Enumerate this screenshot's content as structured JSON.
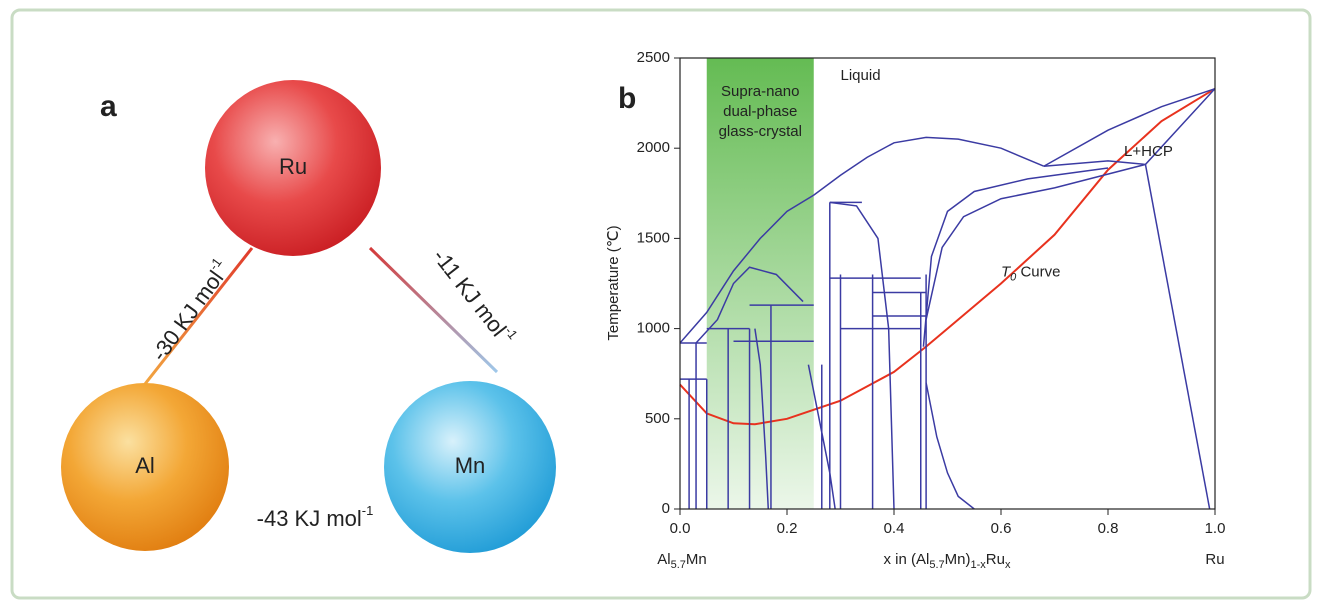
{
  "panel_a": {
    "label": "a",
    "elements": [
      {
        "name": "Ru"
      },
      {
        "name": "Al"
      },
      {
        "name": "Mn"
      }
    ],
    "bonds": [
      {
        "label_parts": [
          "-30 KJ mol",
          "-1"
        ]
      },
      {
        "label_parts": [
          "-11 KJ mol",
          "-1"
        ]
      },
      {
        "label_parts": [
          "-43 KJ mol",
          "-1"
        ]
      }
    ]
  },
  "chart_data": {
    "type": "line",
    "panel_label": "b",
    "ylabel": "Temperature (℃)",
    "xlabel_parts": [
      "x in (Al",
      "5.7",
      "Mn)",
      "1-x",
      "Ru",
      "x"
    ],
    "x_left_label_parts": [
      "Al",
      "5.7",
      "Mn"
    ],
    "x_right_label": "Ru",
    "xlim": [
      0,
      1
    ],
    "ylim": [
      0,
      2500
    ],
    "xticks": [
      {
        "value": 0,
        "label": "0.0"
      },
      0.2,
      0.4,
      0.6,
      0.8,
      {
        "value": 1,
        "label": "1.0"
      }
    ],
    "yticks": [
      0,
      500,
      1000,
      1500,
      2000,
      2500
    ],
    "shade": {
      "x": [
        0.05,
        0.25
      ],
      "color": "#5cb84a",
      "label_lines": [
        "Supra-nano",
        "dual-phase",
        "glass-crystal"
      ]
    },
    "annotations": [
      {
        "text": "Liquid",
        "x": 0.3,
        "y": 2400
      },
      {
        "text": "L+HCP",
        "x": 0.83,
        "y": 1980
      }
    ],
    "t0_label": {
      "parts": [
        "T",
        "0",
        " Curve"
      ],
      "x": 0.6,
      "y": 1310
    },
    "series": [
      {
        "color": "#e8321e",
        "x": [
          0,
          0.05,
          0.1,
          0.14,
          0.2,
          0.3,
          0.4,
          0.46,
          0.5,
          0.6,
          0.7,
          0.8,
          0.9,
          1.0
        ],
        "values": [
          690,
          530,
          475,
          470,
          500,
          600,
          760,
          900,
          1000,
          1250,
          1520,
          1880,
          2150,
          2330
        ]
      },
      {
        "color": "#3b3ba3",
        "x": [
          0,
          0.05,
          0.1,
          0.15,
          0.2,
          0.25
        ],
        "values": [
          920,
          1090,
          1320,
          1500,
          1650,
          1740
        ]
      },
      {
        "color": "#3b3ba3",
        "x": [
          0.25,
          0.3,
          0.35,
          0.4,
          0.46,
          0.52,
          0.6,
          0.68
        ],
        "values": [
          1740,
          1850,
          1950,
          2030,
          2060,
          2050,
          2000,
          1900
        ]
      },
      {
        "color": "#3b3ba3",
        "x": [
          0.68,
          0.8,
          0.9,
          1.0
        ],
        "values": [
          1900,
          2100,
          2230,
          2330
        ]
      },
      {
        "color": "#3b3ba3",
        "x": [
          0.68,
          0.8,
          0.87,
          1.0
        ],
        "values": [
          1900,
          1930,
          1910,
          2330
        ]
      },
      {
        "color": "#3b3ba3",
        "x": [
          0.87,
          0.99
        ],
        "values": [
          1910,
          0
        ]
      },
      {
        "color": "#3b3ba3",
        "x": [
          0.455,
          0.47,
          0.5,
          0.55,
          0.65,
          0.8
        ],
        "values": [
          900,
          1400,
          1650,
          1760,
          1830,
          1890
        ]
      },
      {
        "color": "#3b3ba3",
        "x": [
          0.46,
          0.49,
          0.53,
          0.6,
          0.7,
          0.87
        ],
        "values": [
          1050,
          1450,
          1620,
          1720,
          1780,
          1910
        ]
      },
      {
        "color": "#3b3ba3",
        "x": [
          0.46,
          0.48,
          0.5,
          0.52,
          0.55
        ],
        "values": [
          700,
          400,
          200,
          70,
          0
        ]
      },
      {
        "color": "#3b3ba3",
        "x": [
          0.03,
          0.07,
          0.1,
          0.13,
          0.18,
          0.23
        ],
        "values": [
          920,
          1050,
          1250,
          1340,
          1300,
          1150
        ]
      },
      {
        "color": "#3b3ba3",
        "x": [
          0.28,
          0.33,
          0.37,
          0.39,
          0.4
        ],
        "values": [
          1700,
          1680,
          1500,
          1000,
          0
        ]
      },
      {
        "color": "#3b3ba3",
        "x": [
          0.14,
          0.15,
          0.16,
          0.165
        ],
        "values": [
          1000,
          800,
          300,
          0
        ]
      },
      {
        "color": "#3b3ba3",
        "x": [
          0.24,
          0.26,
          0.28,
          0.29
        ],
        "values": [
          800,
          500,
          200,
          0
        ]
      },
      {
        "color": "#3b3ba3",
        "x": [
          0.017,
          0.017
        ],
        "values": [
          720,
          0
        ]
      },
      {
        "color": "#3b3ba3",
        "x": [
          0.03,
          0.03
        ],
        "values": [
          920,
          0
        ]
      },
      {
        "color": "#3b3ba3",
        "x": [
          0.05,
          0.05
        ],
        "values": [
          720,
          0
        ]
      },
      {
        "color": "#3b3ba3",
        "x": [
          0.09,
          0.09
        ],
        "values": [
          1000,
          0
        ]
      },
      {
        "color": "#3b3ba3",
        "x": [
          0.13,
          0.13
        ],
        "values": [
          1000,
          0
        ]
      },
      {
        "color": "#3b3ba3",
        "x": [
          0.17,
          0.17
        ],
        "values": [
          1130,
          0
        ]
      },
      {
        "color": "#3b3ba3",
        "x": [
          0.265,
          0.265
        ],
        "values": [
          800,
          0
        ]
      },
      {
        "color": "#3b3ba3",
        "x": [
          0.28,
          0.28
        ],
        "values": [
          1700,
          0
        ]
      },
      {
        "color": "#3b3ba3",
        "x": [
          0.3,
          0.3
        ],
        "values": [
          1300,
          0
        ]
      },
      {
        "color": "#3b3ba3",
        "x": [
          0.36,
          0.36
        ],
        "values": [
          1300,
          0
        ]
      },
      {
        "color": "#3b3ba3",
        "x": [
          0.45,
          0.45
        ],
        "values": [
          1200,
          0
        ]
      },
      {
        "color": "#3b3ba3",
        "x": [
          0.46,
          0.46
        ],
        "values": [
          1300,
          0
        ]
      },
      {
        "color": "#3b3ba3",
        "x": [
          0,
          0.05
        ],
        "values": [
          720,
          720
        ]
      },
      {
        "color": "#3b3ba3",
        "x": [
          0,
          0.05
        ],
        "values": [
          920,
          920
        ]
      },
      {
        "color": "#3b3ba3",
        "x": [
          0.05,
          0.13
        ],
        "values": [
          1000,
          1000
        ]
      },
      {
        "color": "#3b3ba3",
        "x": [
          0.13,
          0.25
        ],
        "values": [
          1130,
          1130
        ]
      },
      {
        "color": "#3b3ba3",
        "x": [
          0.1,
          0.25
        ],
        "values": [
          930,
          930
        ]
      },
      {
        "color": "#3b3ba3",
        "x": [
          0.28,
          0.45
        ],
        "values": [
          1280,
          1280
        ]
      },
      {
        "color": "#3b3ba3",
        "x": [
          0.28,
          0.34
        ],
        "values": [
          1700,
          1700
        ]
      },
      {
        "color": "#3b3ba3",
        "x": [
          0.36,
          0.46
        ],
        "values": [
          1200,
          1200
        ]
      },
      {
        "color": "#3b3ba3",
        "x": [
          0.36,
          0.46
        ],
        "values": [
          1070,
          1070
        ]
      },
      {
        "color": "#3b3ba3",
        "x": [
          0.3,
          0.45
        ],
        "values": [
          1000,
          1000
        ]
      }
    ]
  }
}
